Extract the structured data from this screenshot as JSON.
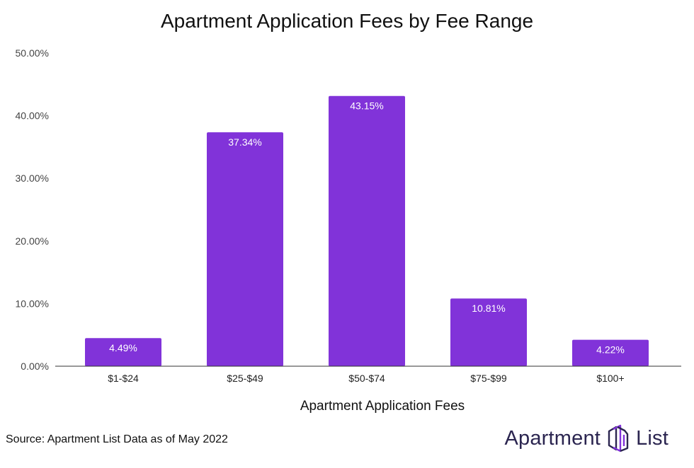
{
  "chart_data": {
    "type": "bar",
    "title": "Apartment Application Fees by Fee Range",
    "categories": [
      "$1-$24",
      "$25-$49",
      "$50-$74",
      "$75-$99",
      "$100+"
    ],
    "values": [
      4.49,
      37.34,
      43.15,
      10.81,
      4.22
    ],
    "data_labels": [
      "4.49%",
      "37.34%",
      "43.15%",
      "10.81%",
      "4.22%"
    ],
    "xlabel": "Apartment Application Fees",
    "ylabel": "",
    "ylim": [
      0,
      50
    ],
    "yticks": [
      0,
      10,
      20,
      30,
      40,
      50
    ],
    "ytick_labels": [
      "0.00%",
      "10.00%",
      "20.00%",
      "30.00%",
      "40.00%",
      "50.00%"
    ],
    "bar_color": "#8133d9",
    "grid": false,
    "legend": "none"
  },
  "footer": {
    "source": "Source: Apartment List Data as of May 2022",
    "brand_left": "Apartment",
    "brand_right": "List",
    "brand_icon": "apartment-list-building-icon",
    "brand_color": "#2b2550",
    "brand_accent": "#8133d9"
  }
}
